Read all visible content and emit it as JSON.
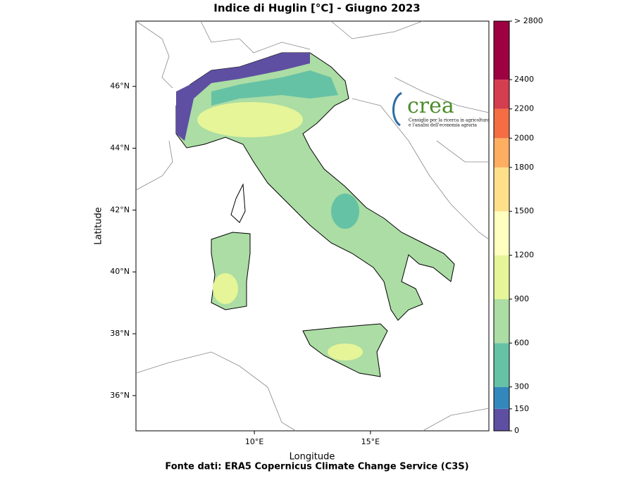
{
  "title": "Indice di Huglin [°C] - Giugno 2023",
  "x_label": "Longitude",
  "y_label": "Latitude",
  "source": "Fonte dati: ERA5 Copernicus Climate Change Service (C3S)",
  "map": {
    "xlim": [
      4.9,
      20.1
    ],
    "ylim": [
      34.86,
      48.11
    ],
    "xticks": [
      {
        "value": 10,
        "label": "10°E"
      },
      {
        "value": 15,
        "label": "15°E"
      }
    ],
    "yticks": [
      {
        "value": 36,
        "label": "36°N"
      },
      {
        "value": 38,
        "label": "38°N"
      },
      {
        "value": 40,
        "label": "40°N"
      },
      {
        "value": 42,
        "label": "42°N"
      },
      {
        "value": 44,
        "label": "44°N"
      },
      {
        "value": 46,
        "label": "46°N"
      }
    ]
  },
  "colorbar": {
    "lim": [
      0,
      2800
    ],
    "ticks": [
      0,
      150,
      300,
      600,
      900,
      1200,
      1500,
      1800,
      2000,
      2200,
      2400,
      {
        "value": 2800,
        "label": "> 2800"
      }
    ],
    "colors": [
      "#5e4fa2",
      "#3288bd",
      "#66c2a5",
      "#abdda4",
      "#e6f598",
      "#ffffbf",
      "#fee08b",
      "#fdae61",
      "#f46d43",
      "#d53e4f",
      "#9e0142"
    ]
  },
  "logo": {
    "name": "crea",
    "line1": "Consiglio per la ricerca in agricoltura",
    "line2": "e l'analisi dell'economia agraria"
  }
}
